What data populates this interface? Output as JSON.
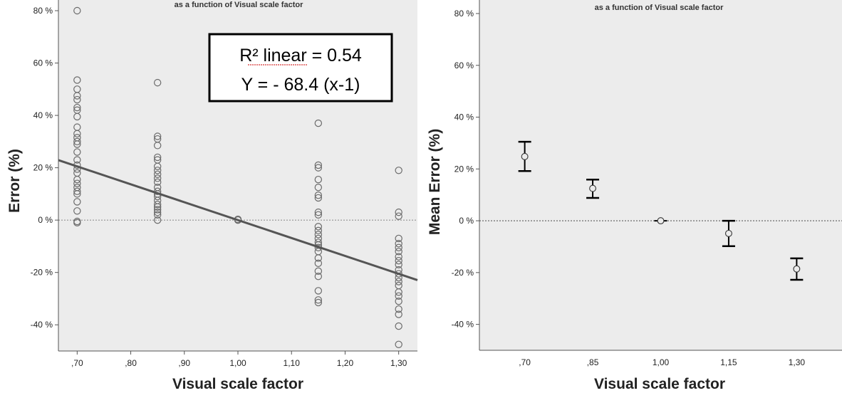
{
  "chart_data": [
    {
      "type": "scatter",
      "title": "as a function of Visual scale factor",
      "xlabel": "Visual scale factor",
      "ylabel": "Error (%)",
      "xlim": [
        0.665,
        1.335
      ],
      "ylim": [
        -50,
        80
      ],
      "xticks": [
        0.7,
        0.8,
        0.9,
        1.0,
        1.1,
        1.2,
        1.3
      ],
      "xtick_labels": [
        ",70",
        ",80",
        ",90",
        "1,00",
        "1,10",
        "1,20",
        "1,30"
      ],
      "yticks": [
        -40,
        -20,
        0,
        20,
        40,
        60,
        80
      ],
      "ytick_labels": [
        "-40 %",
        "-20 %",
        "0 %",
        "20 %",
        "40 %",
        "60 %",
        "80 %"
      ],
      "background": "#ececec",
      "reference_line_y": 0,
      "fit_line": {
        "slope": -68.4,
        "intercept_at_x1": 0,
        "x_range": [
          0.665,
          1.335
        ],
        "color": "#555555"
      },
      "annotation": {
        "line1": "R² linear = 0.54",
        "line2": "Y = - 68.4 (x-1)"
      },
      "series": [
        {
          "points": [
            {
              "x": 0.7,
              "y": 80
            },
            {
              "x": 0.7,
              "y": 53.5
            },
            {
              "x": 0.7,
              "y": 50
            },
            {
              "x": 0.7,
              "y": 47.5
            },
            {
              "x": 0.7,
              "y": 46
            },
            {
              "x": 0.7,
              "y": 43
            },
            {
              "x": 0.7,
              "y": 42
            },
            {
              "x": 0.7,
              "y": 39.5
            },
            {
              "x": 0.7,
              "y": 35.5
            },
            {
              "x": 0.7,
              "y": 33
            },
            {
              "x": 0.7,
              "y": 31.5
            },
            {
              "x": 0.7,
              "y": 30
            },
            {
              "x": 0.7,
              "y": 29
            },
            {
              "x": 0.7,
              "y": 26
            },
            {
              "x": 0.7,
              "y": 23
            },
            {
              "x": 0.7,
              "y": 21
            },
            {
              "x": 0.7,
              "y": 19.5
            },
            {
              "x": 0.7,
              "y": 18
            },
            {
              "x": 0.7,
              "y": 15.5
            },
            {
              "x": 0.7,
              "y": 14
            },
            {
              "x": 0.7,
              "y": 12.5
            },
            {
              "x": 0.7,
              "y": 11
            },
            {
              "x": 0.7,
              "y": 10
            },
            {
              "x": 0.7,
              "y": 7
            },
            {
              "x": 0.7,
              "y": 3.5
            },
            {
              "x": 0.7,
              "y": -0.5
            },
            {
              "x": 0.7,
              "y": -1
            },
            {
              "x": 0.85,
              "y": 52.5
            },
            {
              "x": 0.85,
              "y": 32
            },
            {
              "x": 0.85,
              "y": 31
            },
            {
              "x": 0.85,
              "y": 28.5
            },
            {
              "x": 0.85,
              "y": 24
            },
            {
              "x": 0.85,
              "y": 23
            },
            {
              "x": 0.85,
              "y": 20.5
            },
            {
              "x": 0.85,
              "y": 19
            },
            {
              "x": 0.85,
              "y": 17.5
            },
            {
              "x": 0.85,
              "y": 16
            },
            {
              "x": 0.85,
              "y": 14.5
            },
            {
              "x": 0.85,
              "y": 12.5
            },
            {
              "x": 0.85,
              "y": 11
            },
            {
              "x": 0.85,
              "y": 10
            },
            {
              "x": 0.85,
              "y": 9
            },
            {
              "x": 0.85,
              "y": 7.5
            },
            {
              "x": 0.85,
              "y": 6
            },
            {
              "x": 0.85,
              "y": 5
            },
            {
              "x": 0.85,
              "y": 4
            },
            {
              "x": 0.85,
              "y": 3
            },
            {
              "x": 0.85,
              "y": 2
            },
            {
              "x": 0.85,
              "y": 0
            },
            {
              "x": 1.0,
              "y": 0
            },
            {
              "x": 1.0,
              "y": 0.3
            },
            {
              "x": 1.15,
              "y": 37
            },
            {
              "x": 1.15,
              "y": 21
            },
            {
              "x": 1.15,
              "y": 20
            },
            {
              "x": 1.15,
              "y": 15.5
            },
            {
              "x": 1.15,
              "y": 12.5
            },
            {
              "x": 1.15,
              "y": 9.5
            },
            {
              "x": 1.15,
              "y": 8.5
            },
            {
              "x": 1.15,
              "y": 3
            },
            {
              "x": 1.15,
              "y": 2
            },
            {
              "x": 1.15,
              "y": -2.5
            },
            {
              "x": 1.15,
              "y": -4
            },
            {
              "x": 1.15,
              "y": -5.5
            },
            {
              "x": 1.15,
              "y": -7
            },
            {
              "x": 1.15,
              "y": -8.5
            },
            {
              "x": 1.15,
              "y": -9.5
            },
            {
              "x": 1.15,
              "y": -10.5
            },
            {
              "x": 1.15,
              "y": -12
            },
            {
              "x": 1.15,
              "y": -14.5
            },
            {
              "x": 1.15,
              "y": -16.5
            },
            {
              "x": 1.15,
              "y": -19.5
            },
            {
              "x": 1.15,
              "y": -21.5
            },
            {
              "x": 1.15,
              "y": -27
            },
            {
              "x": 1.15,
              "y": -30.5
            },
            {
              "x": 1.15,
              "y": -31.5
            },
            {
              "x": 1.3,
              "y": 19
            },
            {
              "x": 1.3,
              "y": 3
            },
            {
              "x": 1.3,
              "y": 1.5
            },
            {
              "x": 1.3,
              "y": -7
            },
            {
              "x": 1.3,
              "y": -9
            },
            {
              "x": 1.3,
              "y": -10.5
            },
            {
              "x": 1.3,
              "y": -12
            },
            {
              "x": 1.3,
              "y": -14
            },
            {
              "x": 1.3,
              "y": -15.5
            },
            {
              "x": 1.3,
              "y": -17
            },
            {
              "x": 1.3,
              "y": -19
            },
            {
              "x": 1.3,
              "y": -20.5
            },
            {
              "x": 1.3,
              "y": -22
            },
            {
              "x": 1.3,
              "y": -23.5
            },
            {
              "x": 1.3,
              "y": -25
            },
            {
              "x": 1.3,
              "y": -27.5
            },
            {
              "x": 1.3,
              "y": -29
            },
            {
              "x": 1.3,
              "y": -31
            },
            {
              "x": 1.3,
              "y": -34
            },
            {
              "x": 1.3,
              "y": -36
            },
            {
              "x": 1.3,
              "y": -40.5
            },
            {
              "x": 1.3,
              "y": -47.5
            }
          ]
        }
      ]
    },
    {
      "type": "errorbar",
      "title": "as a function of Visual scale factor",
      "xlabel": "Visual scale factor",
      "ylabel": "Mean Error (%)",
      "xlim": [
        0.6,
        1.4
      ],
      "ylim": [
        -50,
        80
      ],
      "xticks": [
        0.7,
        0.85,
        1.0,
        1.15,
        1.3
      ],
      "xtick_labels": [
        ",70",
        ",85",
        "1,00",
        "1,15",
        "1,30"
      ],
      "yticks": [
        -40,
        -20,
        0,
        20,
        40,
        60,
        80
      ],
      "ytick_labels": [
        "-40 %",
        "-20 %",
        "0 %",
        "20 %",
        "40 %",
        "60 %",
        "80 %"
      ],
      "background": "#ececec",
      "reference_line_y": 0,
      "series": [
        {
          "points": [
            {
              "x": 0.7,
              "mean": 24.8,
              "low": 19.2,
              "high": 30.5
            },
            {
              "x": 0.85,
              "mean": 12.5,
              "low": 8.8,
              "high": 15.9
            },
            {
              "x": 1.0,
              "mean": 0,
              "low": 0,
              "high": 0
            },
            {
              "x": 1.15,
              "mean": -4.9,
              "low": -9.8,
              "high": 0
            },
            {
              "x": 1.3,
              "mean": -18.6,
              "low": -22.8,
              "high": -14.5
            }
          ]
        }
      ]
    }
  ]
}
